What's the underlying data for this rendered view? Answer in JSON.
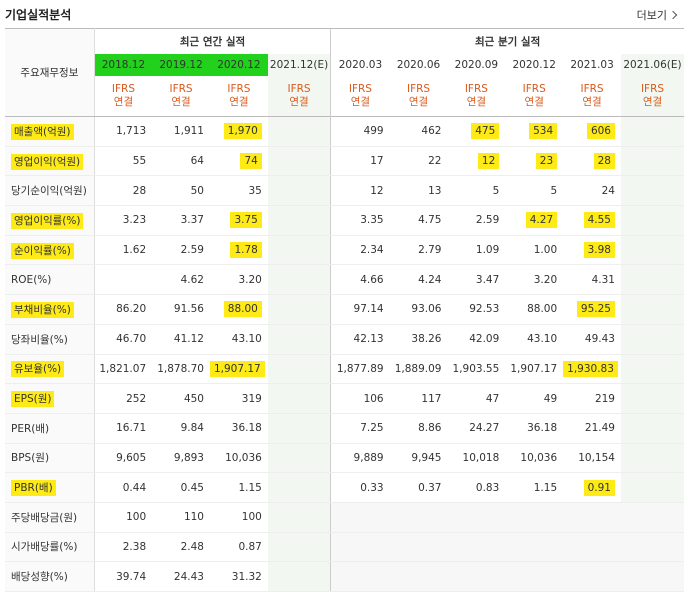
{
  "header": {
    "title": "기업실적분석",
    "more_label": "더보기"
  },
  "groups": {
    "annual": "최근 연간 실적",
    "quarterly": "최근 분기 실적"
  },
  "side_header": "주요재무정보",
  "annual_periods": [
    "2018.12",
    "2019.12",
    "2020.12",
    "2021.12(E)"
  ],
  "quarter_periods": [
    "2020.03",
    "2020.06",
    "2020.09",
    "2020.12",
    "2021.03",
    "2021.06(E)"
  ],
  "ifrs": {
    "top": "IFRS",
    "bottom": "연결"
  },
  "rows": [
    {
      "label": "매출액(억원)",
      "annual": [
        "1,713",
        "1,911",
        "1,970",
        ""
      ],
      "quarter": [
        "499",
        "462",
        "475",
        "534",
        "606",
        ""
      ]
    },
    {
      "label": "영업이익(억원)",
      "annual": [
        "55",
        "64",
        "74",
        ""
      ],
      "quarter": [
        "17",
        "22",
        "12",
        "23",
        "28",
        ""
      ]
    },
    {
      "label": "당기순이익(억원)",
      "annual": [
        "28",
        "50",
        "35",
        ""
      ],
      "quarter": [
        "12",
        "13",
        "5",
        "5",
        "24",
        ""
      ]
    },
    {
      "label": "영업이익률(%)",
      "annual": [
        "3.23",
        "3.37",
        "3.75",
        ""
      ],
      "quarter": [
        "3.35",
        "4.75",
        "2.59",
        "4.27",
        "4.55",
        ""
      ]
    },
    {
      "label": "순이익률(%)",
      "annual": [
        "1.62",
        "2.59",
        "1.78",
        ""
      ],
      "quarter": [
        "2.34",
        "2.79",
        "1.09",
        "1.00",
        "3.98",
        ""
      ]
    },
    {
      "label": "ROE(%)",
      "annual": [
        "",
        "4.62",
        "3.20",
        ""
      ],
      "quarter": [
        "4.66",
        "4.24",
        "3.47",
        "3.20",
        "4.31",
        ""
      ]
    },
    {
      "label": "부채비율(%)",
      "annual": [
        "86.20",
        "91.56",
        "88.00",
        ""
      ],
      "quarter": [
        "97.14",
        "93.06",
        "92.53",
        "88.00",
        "95.25",
        ""
      ]
    },
    {
      "label": "당좌비율(%)",
      "annual": [
        "46.70",
        "41.12",
        "43.10",
        ""
      ],
      "quarter": [
        "42.13",
        "38.26",
        "42.09",
        "43.10",
        "49.43",
        ""
      ]
    },
    {
      "label": "유보율(%)",
      "annual": [
        "1,821.07",
        "1,878.70",
        "1,907.17",
        ""
      ],
      "quarter": [
        "1,877.89",
        "1,889.09",
        "1,903.55",
        "1,907.17",
        "1,930.83",
        ""
      ]
    },
    {
      "label": "EPS(원)",
      "annual": [
        "252",
        "450",
        "319",
        ""
      ],
      "quarter": [
        "106",
        "117",
        "47",
        "49",
        "219",
        ""
      ]
    },
    {
      "label": "PER(배)",
      "annual": [
        "16.71",
        "9.84",
        "36.18",
        ""
      ],
      "quarter": [
        "7.25",
        "8.86",
        "24.27",
        "36.18",
        "21.49",
        ""
      ]
    },
    {
      "label": "BPS(원)",
      "annual": [
        "9,605",
        "9,893",
        "10,036",
        ""
      ],
      "quarter": [
        "9,889",
        "9,945",
        "10,018",
        "10,036",
        "10,154",
        ""
      ]
    },
    {
      "label": "PBR(배)",
      "annual": [
        "0.44",
        "0.45",
        "1.15",
        ""
      ],
      "quarter": [
        "0.33",
        "0.37",
        "0.83",
        "1.15",
        "0.91",
        ""
      ]
    },
    {
      "label": "주당배당금(원)",
      "annual": [
        "100",
        "110",
        "100",
        ""
      ],
      "quarter": []
    },
    {
      "label": "시가배당률(%)",
      "annual": [
        "2.38",
        "2.48",
        "0.87",
        ""
      ],
      "quarter": []
    },
    {
      "label": "배당성향(%)",
      "annual": [
        "39.74",
        "24.43",
        "31.32",
        ""
      ],
      "quarter": []
    }
  ],
  "highlight_color": "#fdea17",
  "green_color": "#21d11b"
}
